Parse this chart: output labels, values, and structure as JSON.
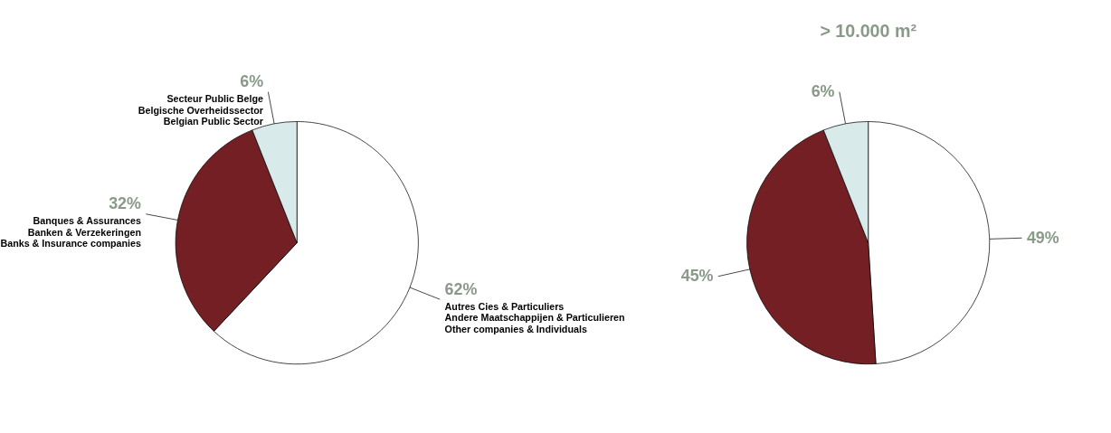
{
  "chart_data": [
    {
      "type": "pie",
      "categories": [
        "Autres Cies & Particuliers\nAndere Maatschappijen & Particulieren\nOther companies & Individuals",
        "Banques & Assurances\nBanken & Verzekeringen\nBanks & Insurance companies",
        "Secteur Public Belge\nBelgische Overheidssector\nBelgian Public Sector"
      ],
      "values": [
        62,
        32,
        6
      ],
      "colors": [
        "#ffffff",
        "#731f24",
        "#d9eaea"
      ],
      "value_labels": [
        "62%",
        "32%",
        "6%"
      ]
    },
    {
      "type": "pie",
      "title": "> 10.000 m²",
      "categories": [
        null,
        null,
        null
      ],
      "values": [
        49,
        45,
        6
      ],
      "colors": [
        "#ffffff",
        "#731f24",
        "#d9eaea"
      ],
      "value_labels": [
        "49%",
        "45%",
        "6%"
      ]
    }
  ]
}
